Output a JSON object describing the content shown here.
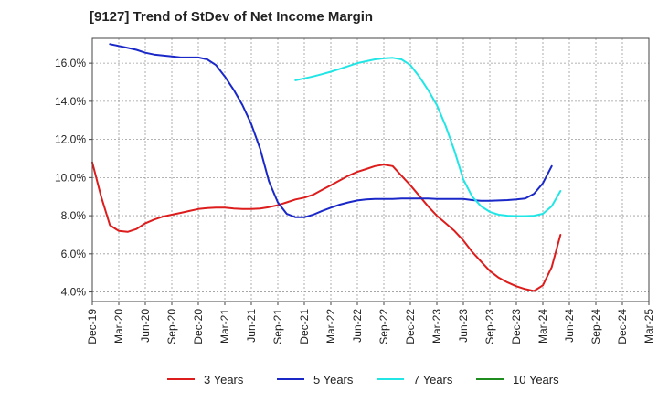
{
  "chart_data": {
    "type": "line",
    "title": "[9127]  Trend of StDev of Net Income Margin",
    "xlabel": "",
    "ylabel": "",
    "x_ticks": [
      "Dec-19",
      "Mar-20",
      "Jun-20",
      "Sep-20",
      "Dec-20",
      "Mar-21",
      "Jun-21",
      "Sep-21",
      "Dec-21",
      "Mar-22",
      "Jun-22",
      "Sep-22",
      "Dec-22",
      "Mar-23",
      "Jun-23",
      "Sep-23",
      "Dec-23",
      "Mar-24",
      "Jun-24",
      "Sep-24",
      "Dec-24",
      "Mar-25"
    ],
    "y_ticks": [
      "4.0%",
      "6.0%",
      "8.0%",
      "10.0%",
      "12.0%",
      "14.0%",
      "16.0%"
    ],
    "ylim": [
      3.5,
      17.3
    ],
    "grid": true,
    "legend_position": "bottom",
    "series": [
      {
        "name": "3 Years",
        "color": "#dd1c1c",
        "start_index": 0,
        "values": [
          10.8,
          9.0,
          7.5,
          7.2,
          7.15,
          7.3,
          7.6,
          7.8,
          7.95,
          8.05,
          8.15,
          8.25,
          8.35,
          8.4,
          8.42,
          8.42,
          8.38,
          8.35,
          8.35,
          8.38,
          8.45,
          8.55,
          8.7,
          8.85,
          8.95,
          9.1,
          9.35,
          9.6,
          9.85,
          10.1,
          10.3,
          10.45,
          10.6,
          10.68,
          10.6,
          10.1,
          9.6,
          9.05,
          8.5,
          8.0,
          7.6,
          7.2,
          6.7,
          6.1,
          5.6,
          5.1,
          4.75,
          4.5,
          4.3,
          4.15,
          4.05,
          4.35,
          5.3,
          7.0
        ]
      },
      {
        "name": "5 Years",
        "color": "#1a28c8",
        "start_index": 2,
        "values": [
          17.0,
          16.9,
          16.8,
          16.7,
          16.55,
          16.45,
          16.4,
          16.35,
          16.3,
          16.3,
          16.3,
          16.2,
          15.9,
          15.3,
          14.6,
          13.8,
          12.8,
          11.5,
          9.8,
          8.7,
          8.1,
          7.92,
          7.92,
          8.05,
          8.25,
          8.42,
          8.58,
          8.7,
          8.8,
          8.85,
          8.88,
          8.88,
          8.88,
          8.9,
          8.9,
          8.9,
          8.9,
          8.88,
          8.88,
          8.88,
          8.88,
          8.82,
          8.78,
          8.78,
          8.8,
          8.82,
          8.85,
          8.9,
          9.15,
          9.7,
          10.6
        ]
      },
      {
        "name": "7 Years",
        "color": "#22e6e6",
        "start_index": 23,
        "values": [
          15.1,
          15.2,
          15.3,
          15.42,
          15.55,
          15.7,
          15.85,
          16.0,
          16.1,
          16.2,
          16.25,
          16.28,
          16.2,
          15.9,
          15.3,
          14.6,
          13.8,
          12.7,
          11.4,
          9.9,
          9.0,
          8.5,
          8.2,
          8.05,
          8.0,
          7.98,
          7.98,
          8.0,
          8.1,
          8.5,
          9.3
        ]
      },
      {
        "name": "10 Years",
        "color": "#1e8c1e",
        "start_index": 0,
        "values": []
      }
    ]
  }
}
